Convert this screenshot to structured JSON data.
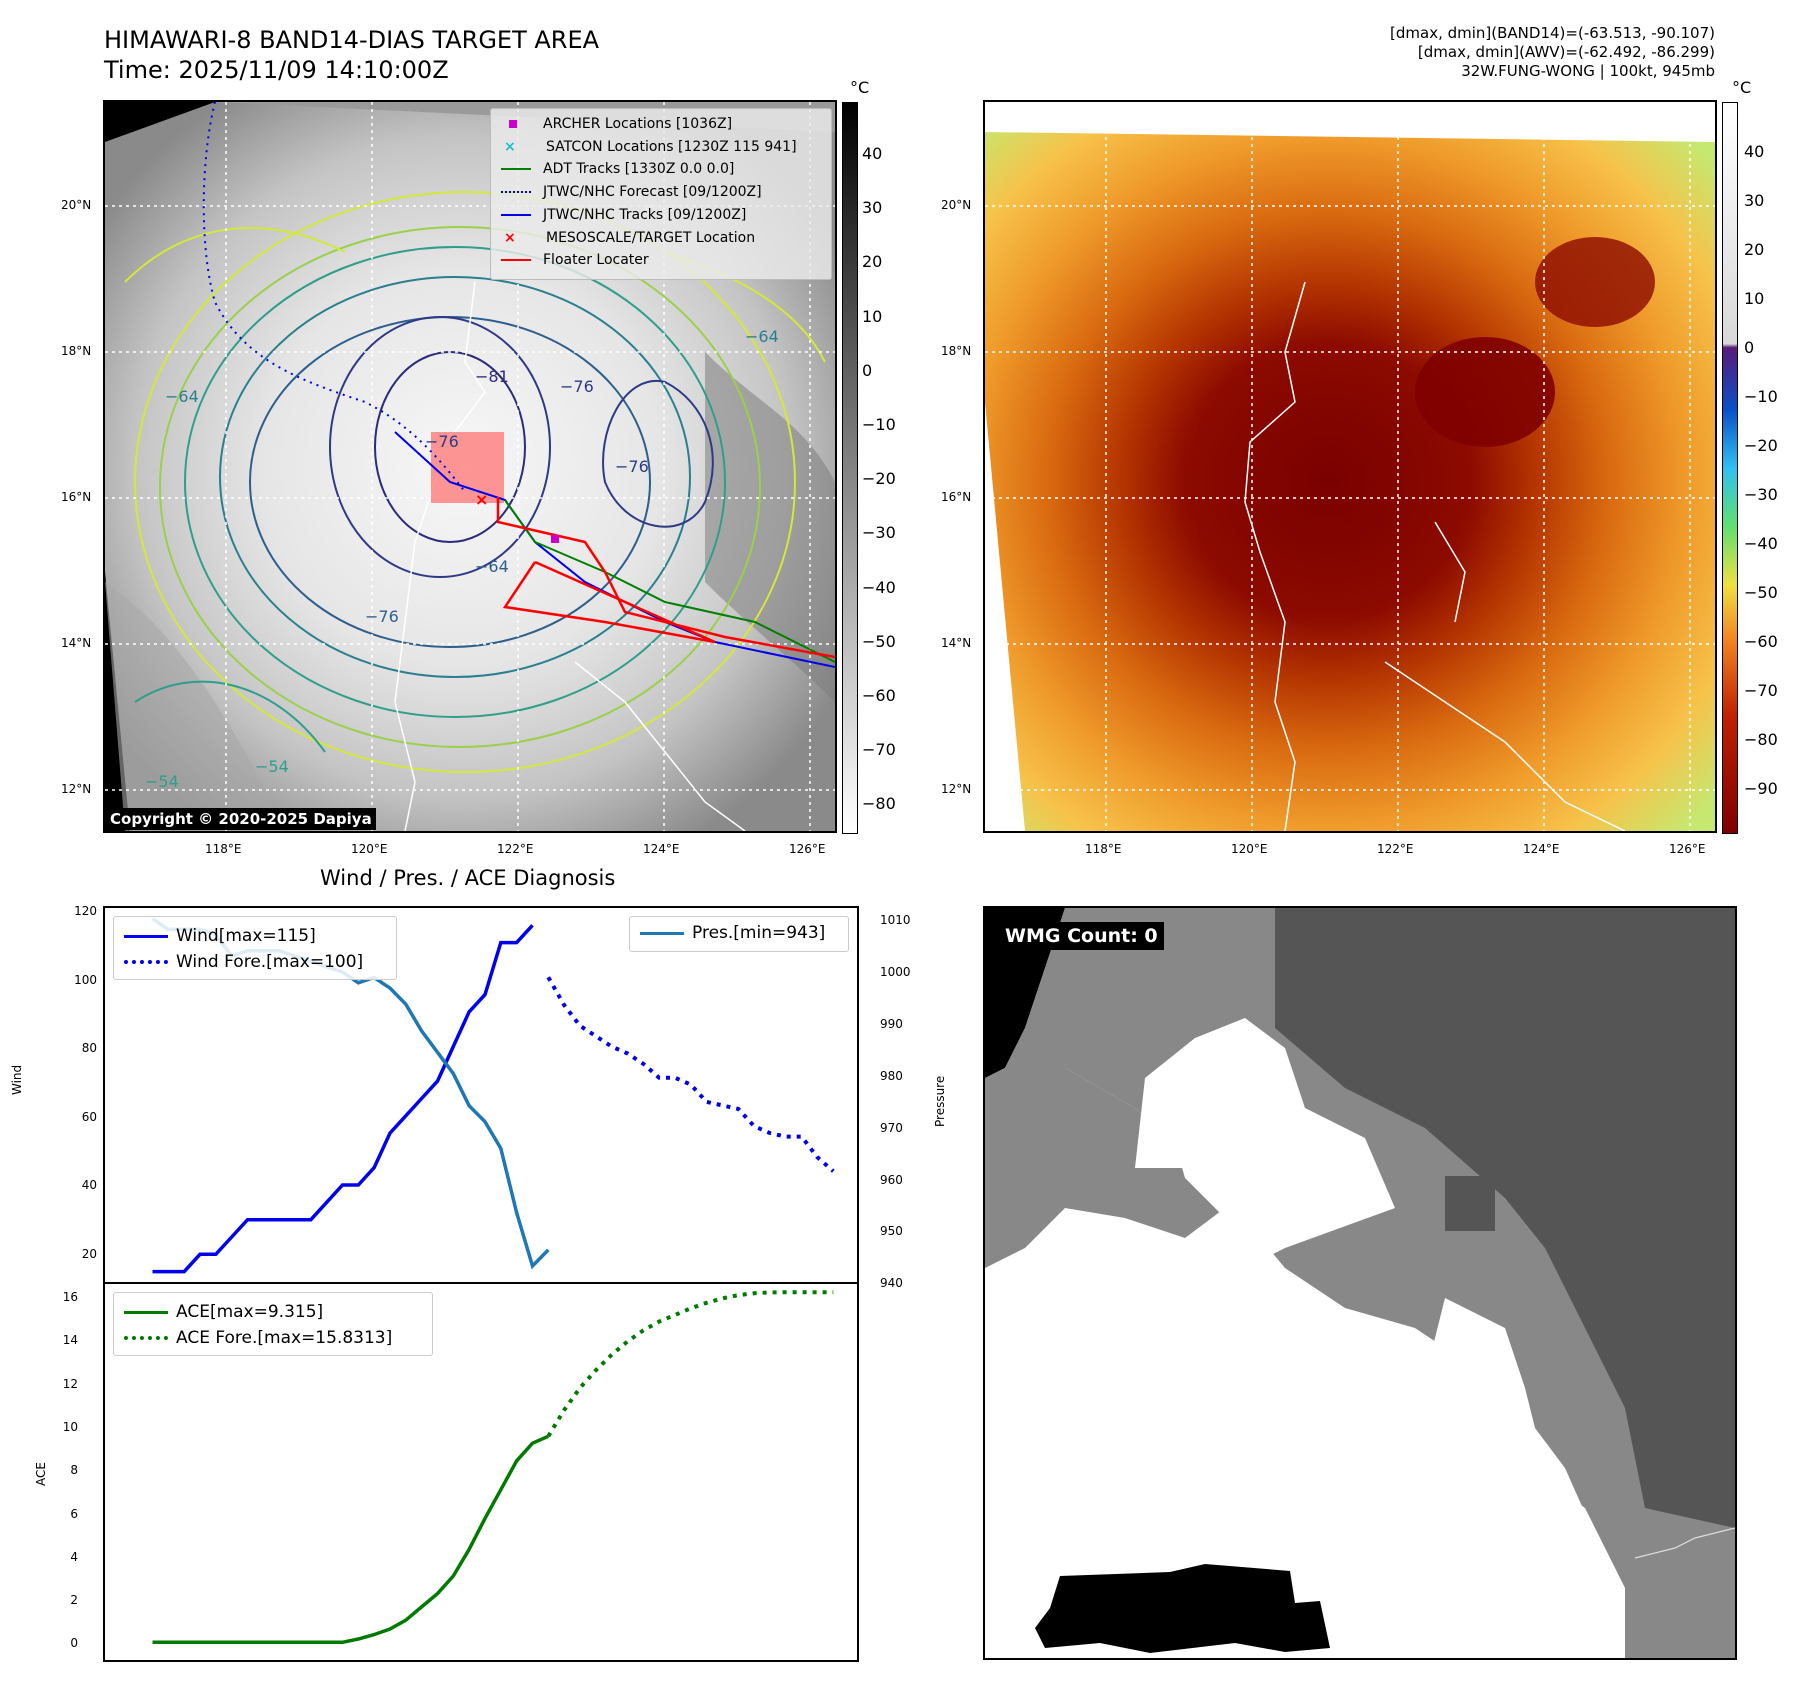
{
  "panel1": {
    "title_line1": "HIMAWARI-8 BAND14-DIAS TARGET AREA",
    "title_line2": "Time: 2025/11/09 14:10:00Z",
    "unit": "°C",
    "legend": [
      "ARCHER Locations [1036Z]",
      "SATCON Locations [1230Z 115 941]",
      "ADT Tracks [1330Z 0.0 0.0]",
      "JTWC/NHC Forecast [09/1200Z]",
      "JTWC/NHC Tracks [09/1200Z]",
      "MESOSCALE/TARGET Location",
      "Floater Locater"
    ],
    "copyright": "Copyright © 2020-2025 Dapiya",
    "colorbar_ticks": [
      "40",
      "30",
      "20",
      "10",
      "0",
      "−10",
      "−20",
      "−30",
      "−40",
      "−50",
      "−60",
      "−70",
      "−80"
    ],
    "contour_labels": [
      "−81",
      "−76",
      "−76",
      "−76",
      "−64",
      "−64",
      "−54",
      "−54",
      "−76",
      "−64"
    ]
  },
  "panel2": {
    "info_line1": "[dmax, dmin](BAND14)=(-63.513, -90.107)",
    "info_line2": "[dmax, dmin](AWV)=(-62.492, -86.299)",
    "info_line3": "32W.FUNG-WONG | 100kt, 945mb",
    "unit": "°C",
    "colorbar_ticks": [
      "40",
      "30",
      "20",
      "10",
      "0",
      "−10",
      "−20",
      "−30",
      "−40",
      "−50",
      "−60",
      "−70",
      "−80",
      "−90"
    ]
  },
  "map_axes": {
    "lat_labels": [
      "20°N",
      "18°N",
      "16°N",
      "14°N",
      "12°N"
    ],
    "lon_labels": [
      "118°E",
      "120°E",
      "122°E",
      "124°E",
      "126°E"
    ]
  },
  "panel3": {
    "title": "Wind / Pres. / ACE Diagnosis",
    "ylabel_left": "Wind",
    "ylabel_right": "Pressure",
    "legend_wind": "Wind[max=115]",
    "legend_wind_fore": "Wind Fore.[max=100]",
    "legend_pres": "Pres.[min=943]",
    "wind_ticks": [
      "120",
      "100",
      "80",
      "60",
      "40",
      "20"
    ],
    "pres_ticks": [
      "1010",
      "1000",
      "990",
      "980",
      "970",
      "960",
      "950",
      "940"
    ]
  },
  "panel4": {
    "ylabel": "ACE",
    "legend_ace": "ACE[max=9.315]",
    "legend_ace_fore": "ACE Fore.[max=15.8313]",
    "ace_ticks": [
      "16",
      "14",
      "12",
      "10",
      "8",
      "6",
      "4",
      "2",
      "0"
    ]
  },
  "panel5": {
    "label": "WMG Count: 0"
  },
  "chart_data": [
    {
      "type": "line",
      "title": "Wind / Pres. / ACE Diagnosis",
      "xlabel": "",
      "ylabel": "Wind",
      "ylim": [
        12,
        120
      ],
      "y2label": "Pressure",
      "y2lim": [
        940,
        1010
      ],
      "series": [
        {
          "name": "Wind[max=115]",
          "axis": "left",
          "style": "solid",
          "color": "#0000ee",
          "x": [
            0,
            1,
            2,
            3,
            4,
            5,
            6,
            7,
            8,
            9,
            10,
            11,
            12,
            13,
            14,
            15,
            16,
            17,
            18,
            19,
            20,
            21,
            22,
            23,
            24
          ],
          "values": [
            15,
            15,
            15,
            20,
            20,
            25,
            30,
            30,
            30,
            30,
            30,
            35,
            40,
            40,
            45,
            55,
            60,
            65,
            70,
            80,
            90,
            95,
            110,
            110,
            115
          ]
        },
        {
          "name": "Wind Fore.[max=100]",
          "axis": "left",
          "style": "dotted",
          "color": "#0000ee",
          "x": [
            25,
            26,
            27,
            28,
            29,
            30,
            31,
            32,
            33,
            34,
            35,
            36,
            37,
            38,
            39,
            40,
            41,
            42,
            43
          ],
          "values": [
            100,
            92,
            86,
            83,
            80,
            78,
            75,
            71,
            71,
            69,
            64,
            63,
            62,
            57,
            55,
            54,
            54,
            48,
            44
          ]
        },
        {
          "name": "Pres.[min=943]",
          "axis": "right",
          "style": "solid",
          "color": "#1f77b4",
          "x": [
            0,
            1,
            2,
            3,
            4,
            5,
            6,
            7,
            8,
            9,
            10,
            11,
            12,
            13,
            14,
            15,
            16,
            17,
            18,
            19,
            20,
            21,
            22,
            23,
            24,
            25
          ],
          "values": [
            1008,
            1006,
            1006,
            1006,
            1005,
            1001,
            1002,
            1002,
            1002,
            1001,
            1000,
            999,
            998,
            996,
            997,
            995,
            992,
            987,
            983,
            979,
            973,
            970,
            965,
            953,
            943,
            946
          ]
        }
      ]
    },
    {
      "type": "line",
      "xlabel": "",
      "ylabel": "ACE",
      "ylim": [
        -0.8,
        16.2
      ],
      "series": [
        {
          "name": "ACE[max=9.315]",
          "style": "solid",
          "color": "#007a00",
          "x": [
            0,
            2,
            4,
            6,
            8,
            10,
            12,
            13,
            14,
            15,
            16,
            17,
            18,
            19,
            20,
            21,
            22,
            23,
            24,
            25
          ],
          "values": [
            0,
            0,
            0,
            0,
            0,
            0,
            0,
            0.15,
            0.35,
            0.6,
            1.0,
            1.6,
            2.2,
            3.0,
            4.2,
            5.6,
            6.9,
            8.2,
            9.0,
            9.315
          ]
        },
        {
          "name": "ACE Fore.[max=15.8313]",
          "style": "dotted",
          "color": "#007a00",
          "x": [
            25,
            26,
            27,
            28,
            29,
            30,
            31,
            32,
            33,
            34,
            35,
            36,
            37,
            38,
            39,
            40,
            41,
            42,
            43
          ],
          "values": [
            9.315,
            10.5,
            11.5,
            12.3,
            13.0,
            13.6,
            14.1,
            14.5,
            14.8,
            15.1,
            15.35,
            15.55,
            15.7,
            15.78,
            15.82,
            15.83,
            15.83,
            15.83,
            15.8313
          ]
        }
      ]
    }
  ],
  "colors": {
    "wind": "#0000ee",
    "pressure": "#1f77b4",
    "ace": "#007a00",
    "archer": "#cc00cc",
    "satcon": "#17becf",
    "target": "#ff0000"
  }
}
